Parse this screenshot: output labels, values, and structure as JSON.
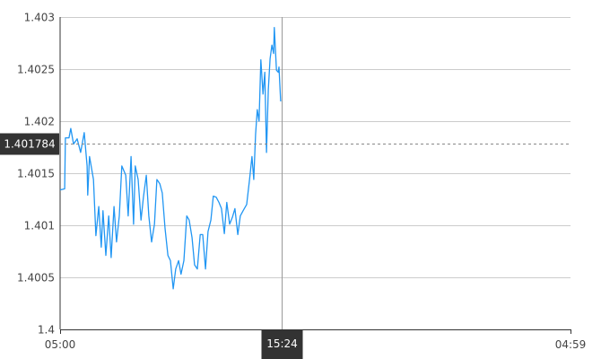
{
  "chart_data": {
    "type": "line",
    "title": "",
    "xlabel": "",
    "ylabel": "",
    "ylim": [
      1.4,
      1.403
    ],
    "yticks": [
      "1.4",
      "1.4005",
      "1.401",
      "1.4015",
      "1.402",
      "1.4025",
      "1.403"
    ],
    "xticks": [
      "05:00",
      "04:59"
    ],
    "xrange": [
      "05:00",
      "04:59"
    ],
    "grid": true,
    "series_color": "#2196f3",
    "crosshair": {
      "x_label": "15:24",
      "y_label": "1.401784",
      "y_value": 1.401784
    },
    "series": [
      {
        "x": [
          "05:00",
          "05:13",
          "05:15",
          "05:25",
          "05:30",
          "05:38",
          "05:48",
          "05:58",
          "06:08",
          "06:16",
          "06:18",
          "06:23",
          "06:34",
          "06:41",
          "06:49",
          "06:56",
          "07:01",
          "07:09",
          "07:17",
          "07:24",
          "07:32",
          "07:39",
          "07:47",
          "07:54",
          "08:05",
          "08:12",
          "08:20",
          "08:27",
          "08:32",
          "08:40",
          "08:48",
          "08:55",
          "09:03",
          "09:10",
          "09:18",
          "09:26",
          "09:33",
          "09:41",
          "09:48",
          "09:56",
          "10:04",
          "10:11",
          "10:19",
          "10:26",
          "10:34",
          "10:41",
          "10:49",
          "10:57",
          "11:04",
          "11:12",
          "11:19",
          "11:27",
          "11:35",
          "11:42",
          "11:50",
          "11:57",
          "12:05",
          "12:12",
          "12:20",
          "12:28",
          "12:35",
          "12:43",
          "12:50",
          "12:58",
          "13:06",
          "13:13",
          "13:21",
          "13:28",
          "13:36",
          "13:46",
          "13:54",
          "14:01",
          "14:06",
          "14:11",
          "14:16",
          "14:21",
          "14:26",
          "14:32",
          "14:37",
          "14:42",
          "14:47",
          "14:52",
          "14:57",
          "15:02",
          "15:04",
          "15:10",
          "15:15",
          "15:17",
          "15:22"
        ],
        "y": [
          1.40134,
          1.40135,
          1.40184,
          1.40184,
          1.40193,
          1.40178,
          1.40183,
          1.4017,
          1.40189,
          1.40157,
          1.40129,
          1.40166,
          1.40144,
          1.4009,
          1.40118,
          1.40079,
          1.40114,
          1.40071,
          1.40109,
          1.40069,
          1.40118,
          1.40084,
          1.40109,
          1.40157,
          1.40148,
          1.40109,
          1.40166,
          1.40101,
          1.40157,
          1.40144,
          1.40105,
          1.40127,
          1.40148,
          1.40109,
          1.40084,
          1.40101,
          1.40144,
          1.4014,
          1.40131,
          1.40097,
          1.40071,
          1.40066,
          1.40039,
          1.40058,
          1.40066,
          1.40053,
          1.40066,
          1.40109,
          1.40105,
          1.40088,
          1.40062,
          1.40058,
          1.40091,
          1.40091,
          1.40058,
          1.40094,
          1.40105,
          1.40128,
          1.40127,
          1.40122,
          1.40116,
          1.40092,
          1.40122,
          1.40101,
          1.40108,
          1.40116,
          1.40091,
          1.40109,
          1.40114,
          1.4012,
          1.40144,
          1.40166,
          1.40144,
          1.40187,
          1.40211,
          1.402,
          1.40259,
          1.40226,
          1.40247,
          1.4017,
          1.4023,
          1.4026,
          1.40273,
          1.40265,
          1.4029,
          1.40249,
          1.40247,
          1.40252,
          1.40219
        ]
      }
    ]
  }
}
